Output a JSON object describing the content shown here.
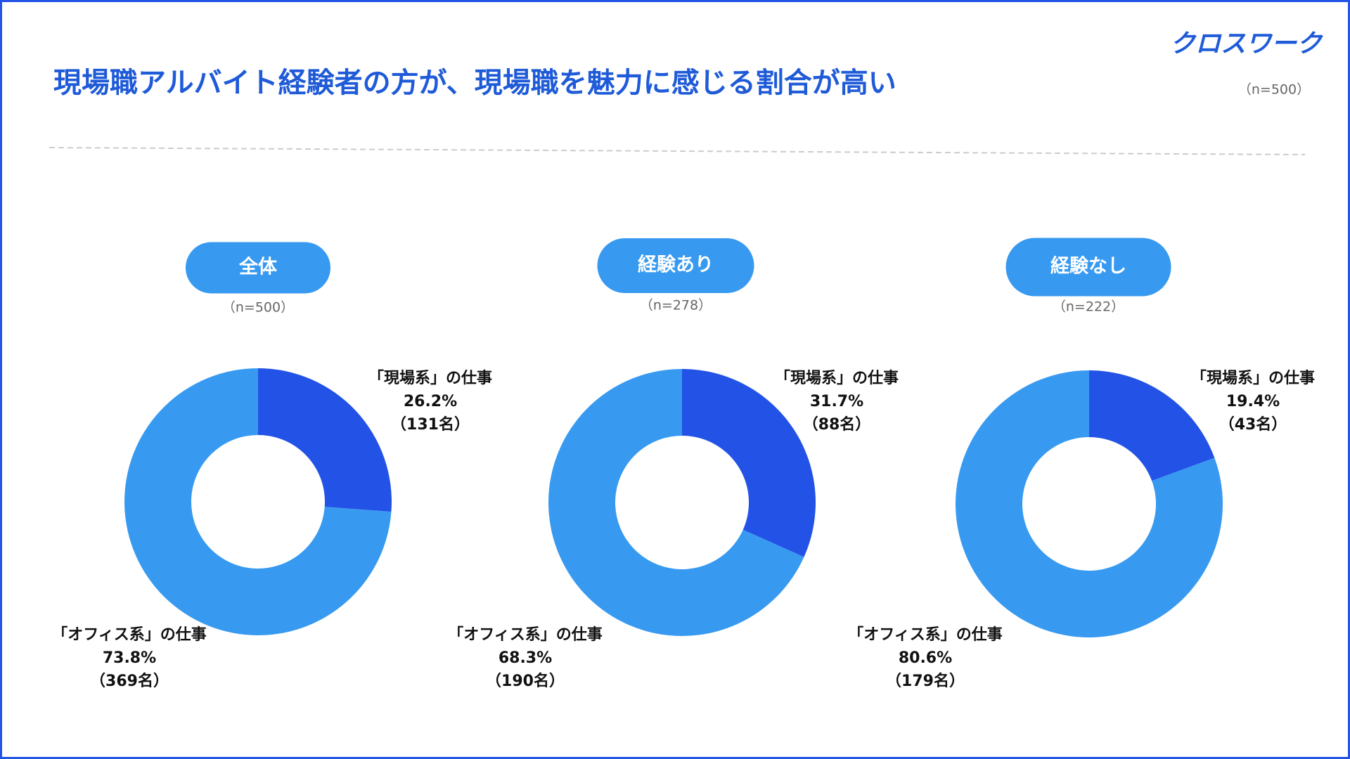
{
  "header": {
    "title": "現場職アルバイト経験者の方が、現場職を魅力に感じる割合が高い",
    "logo": "クロスワーク",
    "sample_size": "（n=500）"
  },
  "chart_data": [
    {
      "type": "donut",
      "title": "全体",
      "subtitle": "（n=500）",
      "categories": [
        "「現場系」の仕事",
        "「オフィス系」の仕事"
      ],
      "colors": [
        "#2353e6",
        "#379af0"
      ],
      "values": [
        26.2,
        73.8
      ],
      "value_labels": [
        "26.2%",
        "73.8%"
      ],
      "counts": [
        131,
        369
      ],
      "count_labels": [
        "（131名）",
        "（369名）"
      ]
    },
    {
      "type": "donut",
      "title": "経験あり",
      "subtitle": "（n=278）",
      "categories": [
        "「現場系」の仕事",
        "「オフィス系」の仕事"
      ],
      "colors": [
        "#2353e6",
        "#379af0"
      ],
      "values": [
        31.7,
        68.3
      ],
      "value_labels": [
        "31.7%",
        "68.3%"
      ],
      "counts": [
        88,
        190
      ],
      "count_labels": [
        "（88名）",
        "（190名）"
      ]
    },
    {
      "type": "donut",
      "title": "経験なし",
      "subtitle": "（n=222）",
      "categories": [
        "「現場系」の仕事",
        "「オフィス系」の仕事"
      ],
      "colors": [
        "#2353e6",
        "#379af0"
      ],
      "values": [
        19.4,
        80.6
      ],
      "value_labels": [
        "19.4%",
        "80.6%"
      ],
      "counts": [
        43,
        179
      ],
      "count_labels": [
        "（43名）",
        "（179名）"
      ]
    }
  ]
}
